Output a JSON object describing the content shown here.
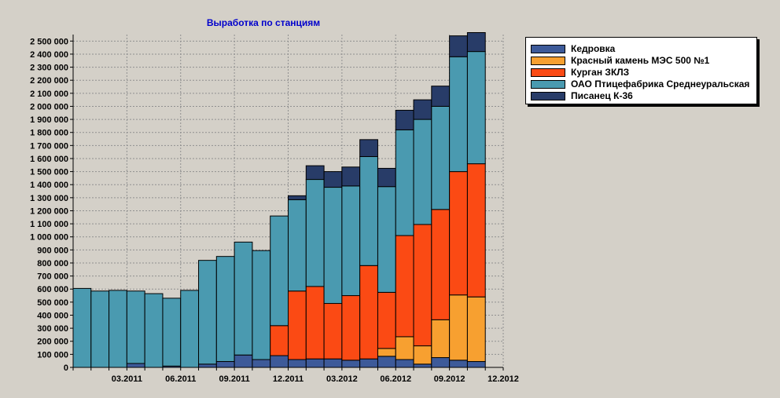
{
  "title": "Выработка по станциям",
  "colors": {
    "background": "#d4d0c8",
    "grid": "#909090",
    "series": [
      "#3d5a99",
      "#f7a030",
      "#fb4a14",
      "#4a9ab0",
      "#283c68"
    ]
  },
  "chart_data": {
    "type": "bar",
    "stacked": true,
    "title": "Выработка по станциям",
    "xlabel": "",
    "ylabel": "",
    "ylim": [
      0,
      2550000
    ],
    "y_ticks": [
      0,
      100000,
      200000,
      300000,
      400000,
      500000,
      600000,
      700000,
      800000,
      900000,
      1000000,
      1100000,
      1200000,
      1300000,
      1400000,
      1500000,
      1600000,
      1700000,
      1800000,
      1900000,
      2000000,
      2100000,
      2200000,
      2300000,
      2400000,
      2500000
    ],
    "y_tick_labels": [
      "0",
      "100 000",
      "200 000",
      "300 000",
      "400 000",
      "500 000",
      "600 000",
      "700 000",
      "800 000",
      "900 000",
      "1 000 000",
      "1 100 000",
      "1 200 000",
      "1 300 000",
      "1 400 000",
      "1 500 000",
      "1 600 000",
      "1 700 000",
      "1 800 000",
      "1 900 000",
      "2 000 000",
      "2 100 000",
      "2 200 000",
      "2 300 000",
      "2 400 000",
      "2 500 000"
    ],
    "categories": [
      "01.2011",
      "02.2011",
      "03.2011",
      "04.2011",
      "05.2011",
      "06.2011",
      "07.2011",
      "08.2011",
      "09.2011",
      "10.2011",
      "11.2011",
      "12.2011",
      "01.2012",
      "02.2012",
      "03.2012",
      "04.2012",
      "05.2012",
      "06.2012",
      "07.2012",
      "08.2012",
      "09.2012",
      "10.2012",
      "11.2012",
      "12.2012"
    ],
    "x_tick_labels": [
      {
        "index": 2,
        "label": "03.2011"
      },
      {
        "index": 5,
        "label": "06.2011"
      },
      {
        "index": 8,
        "label": "09.2011"
      },
      {
        "index": 11,
        "label": "12.2011"
      },
      {
        "index": 14,
        "label": "03.2012"
      },
      {
        "index": 17,
        "label": "06.2012"
      },
      {
        "index": 20,
        "label": "09.2012"
      },
      {
        "index": 23,
        "label": "12.2012"
      }
    ],
    "series": [
      {
        "name": "Кедровка",
        "values": [
          0,
          0,
          0,
          30000,
          0,
          10000,
          0,
          25000,
          45000,
          95000,
          60000,
          90000,
          60000,
          65000,
          65000,
          55000,
          65000,
          85000,
          60000,
          25000,
          75000,
          55000,
          45000,
          0
        ]
      },
      {
        "name": "Красный камень МЭС 500 №1",
        "values": [
          0,
          0,
          0,
          0,
          0,
          0,
          0,
          0,
          0,
          0,
          0,
          0,
          0,
          0,
          0,
          0,
          0,
          60000,
          175000,
          140000,
          290000,
          500000,
          495000,
          0
        ]
      },
      {
        "name": "Курган ЗКЛЗ",
        "values": [
          0,
          0,
          0,
          0,
          0,
          0,
          0,
          0,
          0,
          0,
          0,
          230000,
          525000,
          555000,
          425000,
          495000,
          715000,
          430000,
          775000,
          930000,
          845000,
          945000,
          1020000,
          0
        ]
      },
      {
        "name": "ОАО  Птицефабрика Среднеуральская",
        "values": [
          605000,
          585000,
          590000,
          555000,
          565000,
          520000,
          590000,
          795000,
          805000,
          865000,
          835000,
          840000,
          700000,
          820000,
          890000,
          840000,
          835000,
          810000,
          810000,
          805000,
          790000,
          880000,
          860000,
          0
        ]
      },
      {
        "name": "Писанец К-36",
        "values": [
          0,
          0,
          0,
          0,
          0,
          0,
          0,
          0,
          0,
          0,
          0,
          0,
          30000,
          105000,
          120000,
          145000,
          130000,
          140000,
          150000,
          150000,
          155000,
          160000,
          145000,
          0
        ]
      }
    ],
    "legend": {
      "position": "top-right",
      "entries": [
        "Кедровка",
        "Красный камень МЭС 500 №1",
        "Курган ЗКЛЗ",
        "ОАО  Птицефабрика Среднеуральская",
        "Писанец К-36"
      ]
    },
    "grid": true
  }
}
